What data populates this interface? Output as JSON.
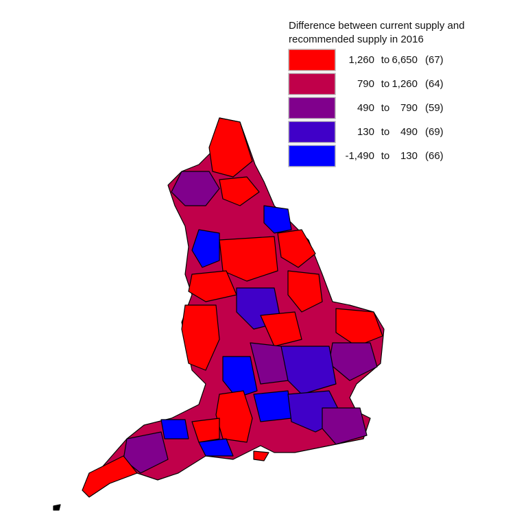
{
  "legend": {
    "title_lines": [
      "Difference between current supply and",
      "recommended supply in 2016"
    ],
    "items": [
      {
        "from": "1,260",
        "sep": "to",
        "to": "6,650",
        "count": "(67)",
        "color": "#ff0000"
      },
      {
        "from": "790",
        "sep": "to",
        "to": "1,260",
        "count": "(64)",
        "color": "#c0004a"
      },
      {
        "from": "490",
        "sep": "to",
        "to": "790",
        "count": "(59)",
        "color": "#80008c"
      },
      {
        "from": "130",
        "sep": "to",
        "to": "490",
        "count": "(69)",
        "color": "#4000c8"
      },
      {
        "from": "-1,490",
        "sep": "to",
        "to": "130",
        "count": "(66)",
        "color": "#0000ff"
      }
    ]
  }
}
